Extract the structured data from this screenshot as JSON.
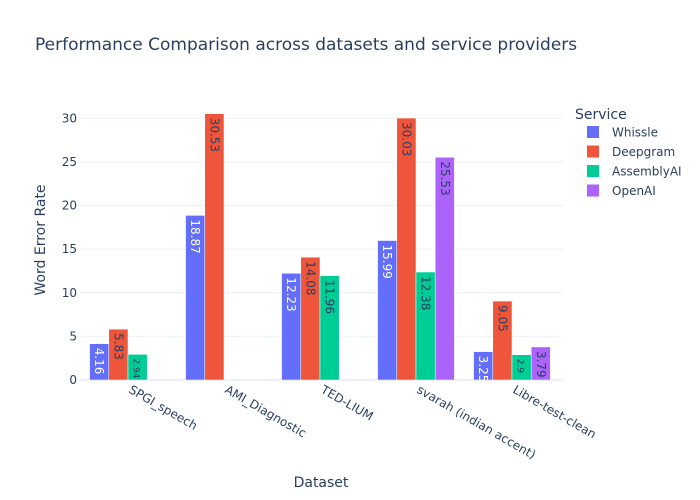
{
  "chart_data": {
    "type": "bar",
    "barmode": "group",
    "title": "Performance Comparison across datasets and service providers",
    "xlabel": "Dataset",
    "ylabel": "Word Error Rate",
    "ylim": [
      0,
      32.1
    ],
    "yticks": [
      0,
      5,
      10,
      15,
      20,
      25,
      30
    ],
    "grid": true,
    "legend_title": "Service",
    "legend_position": "top-right",
    "categories": [
      "SPGI_speech",
      "AMI_Diagnostic",
      "TED-LIUM",
      "svarah (indian accent)",
      "Libre-test-clean"
    ],
    "series": [
      {
        "name": "Whissle",
        "color": "#636efa",
        "values": [
          4.16,
          18.87,
          12.23,
          15.99,
          3.25
        ],
        "labels": [
          "4.16",
          "18.87",
          "12.23",
          "15.99",
          "3.25"
        ]
      },
      {
        "name": "Deepgram",
        "color": "#ef553b",
        "values": [
          5.83,
          30.53,
          14.08,
          30.03,
          9.05
        ],
        "labels": [
          "5.83",
          "30.53",
          "14.08",
          "30.03",
          "9.05"
        ]
      },
      {
        "name": "AssemblyAI",
        "color": "#00cc96",
        "values": [
          2.94,
          null,
          11.96,
          12.38,
          2.9
        ],
        "labels": [
          "2.94",
          null,
          "11.96",
          "12.38",
          "2.9"
        ]
      },
      {
        "name": "OpenAI",
        "color": "#ab63fa",
        "values": [
          null,
          null,
          null,
          25.53,
          3.79
        ],
        "labels": [
          null,
          null,
          null,
          "25.53",
          "3.79"
        ]
      }
    ]
  }
}
